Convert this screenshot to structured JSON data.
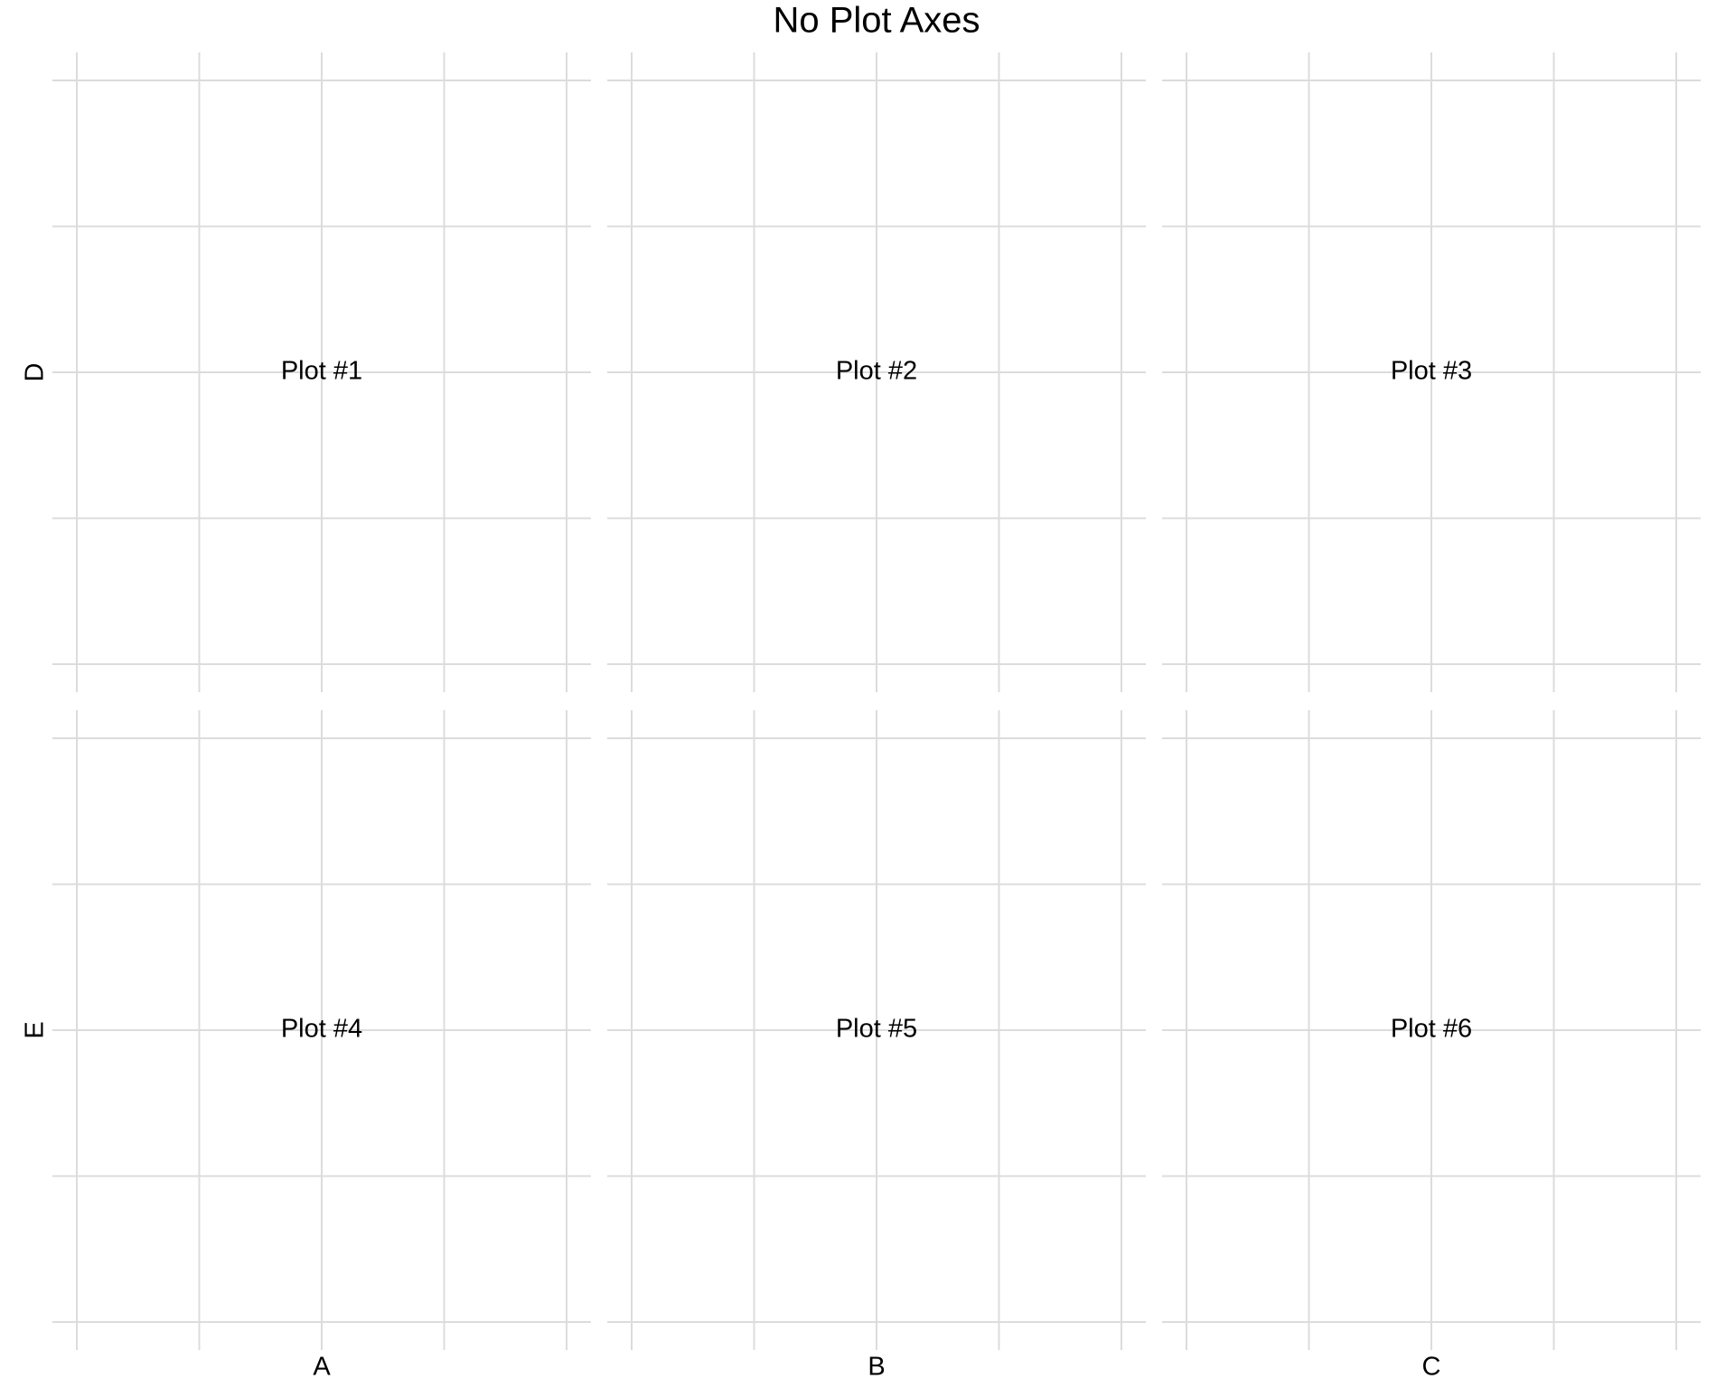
{
  "chart_data": {
    "type": "scatter",
    "title": "No Plot Axes",
    "layout": {
      "rows": 2,
      "cols": 3
    },
    "column_labels": [
      "A",
      "B",
      "C"
    ],
    "row_labels": [
      "D",
      "E"
    ],
    "grid": true,
    "axes_visible": false,
    "xlim": [
      0,
      1
    ],
    "ylim": [
      0,
      1
    ],
    "x_gridlines": [
      0.0,
      0.25,
      0.5,
      0.75,
      1.0
    ],
    "y_gridlines": [
      0.0,
      0.25,
      0.5,
      0.75,
      1.0
    ],
    "panels": [
      {
        "label": "Plot #1",
        "row": 0,
        "col": 0
      },
      {
        "label": "Plot #2",
        "row": 0,
        "col": 1
      },
      {
        "label": "Plot #3",
        "row": 0,
        "col": 2
      },
      {
        "label": "Plot #4",
        "row": 1,
        "col": 0
      },
      {
        "label": "Plot #5",
        "row": 1,
        "col": 1
      },
      {
        "label": "Plot #6",
        "row": 1,
        "col": 2
      }
    ],
    "colors": {
      "grid": "#dcdcdc",
      "text": "#000000",
      "background": "#ffffff"
    }
  }
}
